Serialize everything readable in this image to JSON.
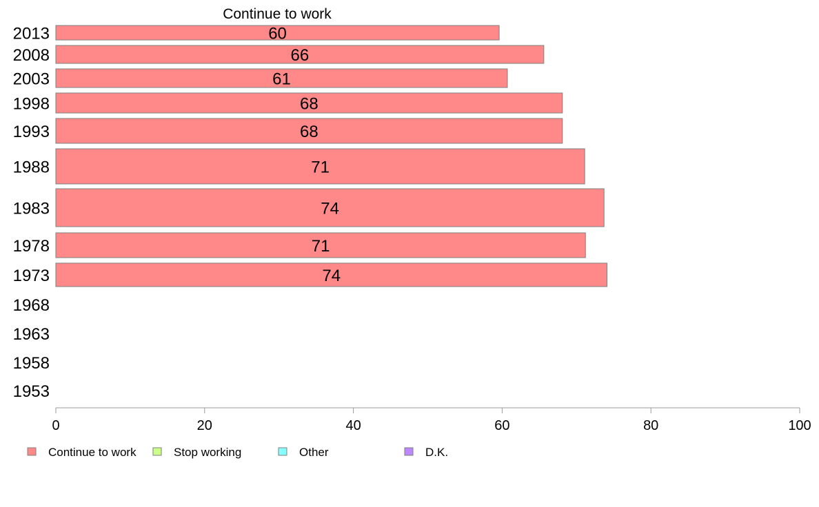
{
  "chart_data": {
    "type": "bar",
    "orientation": "horizontal",
    "title": "Continue to work",
    "categories": [
      "2013",
      "2008",
      "2003",
      "1998",
      "1993",
      "1988",
      "1983",
      "1978",
      "1973",
      "1968",
      "1963",
      "1958",
      "1953"
    ],
    "series": [
      {
        "name": "Continue to work",
        "color": "#ff8888",
        "values": [
          59.6,
          65.6,
          60.7,
          68.1,
          68.1,
          71.1,
          73.7,
          71.2,
          74.1,
          null,
          null,
          null,
          null
        ],
        "labels": [
          "60",
          "66",
          "61",
          "68",
          "68",
          "71",
          "74",
          "71",
          "74",
          null,
          null,
          null,
          null
        ]
      }
    ],
    "legend": [
      {
        "name": "Continue to work",
        "color": "#ff8888"
      },
      {
        "name": "Stop working",
        "color": "#ccff88"
      },
      {
        "name": "Other",
        "color": "#88ffff"
      },
      {
        "name": "D.K.",
        "color": "#bb88ff"
      }
    ],
    "xticks": [
      "0",
      "20",
      "40",
      "60",
      "80",
      "100"
    ],
    "xlim": [
      0,
      100
    ],
    "legend_position": "bottom",
    "grid": false
  }
}
